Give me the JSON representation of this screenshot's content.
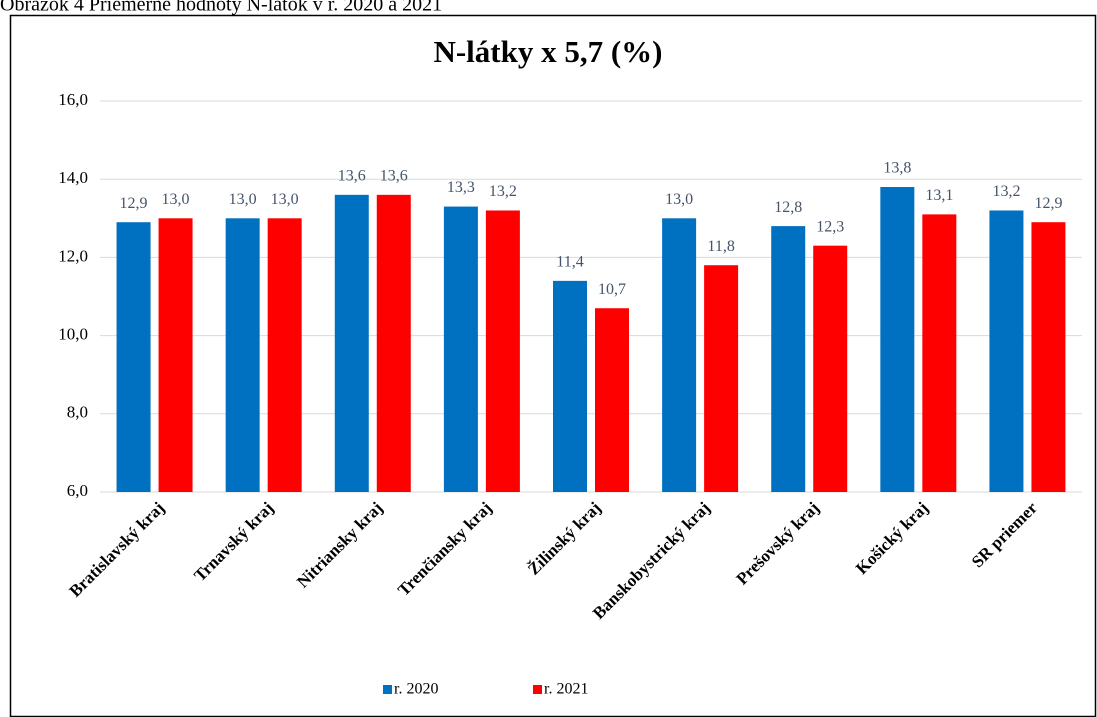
{
  "caption": "Obrázok 4 Priemerné hodnoty N-látok v r. 2020 a 2021",
  "chart_data": {
    "type": "bar",
    "title": "N-látky x 5,7 (%)",
    "categories": [
      "Bratislavský kraj",
      "Trnavský kraj",
      "Nitriansky kraj",
      "Trenčiansky kraj",
      "Žilinský kraj",
      "Banskobystrický kraj",
      "Prešovský kraj",
      "Košický kraj",
      "SR priemer"
    ],
    "series": [
      {
        "name": "r. 2020",
        "color": "#0070c0",
        "values": [
          12.9,
          13.0,
          13.6,
          13.3,
          11.4,
          13.0,
          12.8,
          13.8,
          13.2
        ],
        "value_labels": [
          "12,9",
          "13,0",
          "13,6",
          "13,3",
          "11,4",
          "13,0",
          "12,8",
          "13,8",
          "13,2"
        ]
      },
      {
        "name": "r. 2021",
        "color": "#ff0000",
        "values": [
          13.0,
          13.0,
          13.6,
          13.2,
          10.7,
          11.8,
          12.3,
          13.1,
          12.9
        ],
        "value_labels": [
          "13,0",
          "13,0",
          "13,6",
          "13,2",
          "10,7",
          "11,8",
          "12,3",
          "13,1",
          "12,9"
        ]
      }
    ],
    "ylim": [
      6,
      16
    ],
    "yticks": [
      {
        "value": 6,
        "label": "6,0"
      },
      {
        "value": 8,
        "label": "8,0"
      },
      {
        "value": 10,
        "label": "10,0"
      },
      {
        "value": 12,
        "label": "12,0"
      },
      {
        "value": 14,
        "label": "14,0"
      },
      {
        "value": 16,
        "label": "16,0"
      }
    ],
    "grid": true,
    "legend": "bottom"
  }
}
